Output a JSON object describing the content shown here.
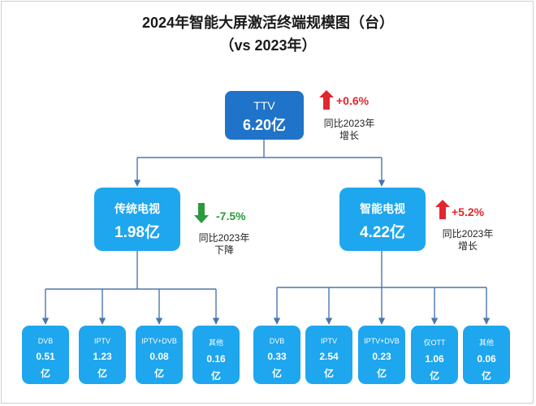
{
  "title": "2024年智能大屏激活终端规模图（台）",
  "subtitle": "（vs 2023年）",
  "root": {
    "label": "TTV",
    "value": "6.20亿",
    "change": "+0.6%",
    "note_line1": "同比2023年",
    "note_line2": "增长"
  },
  "traditional": {
    "label": "传统电视",
    "value": "1.98亿",
    "change": "-7.5%",
    "note_line1": "同比2023年",
    "note_line2": "下降"
  },
  "smart": {
    "label": "智能电视",
    "value": "4.22亿",
    "change": "+5.2%",
    "note_line1": "同比2023年",
    "note_line2": "增长"
  },
  "unit": "亿",
  "traditional_children": [
    {
      "label": "DVB",
      "value": "0.51"
    },
    {
      "label": "IPTV",
      "value": "1.23"
    },
    {
      "label": "IPTV+DVB",
      "value": "0.08"
    },
    {
      "label": "其他",
      "value": "0.16"
    }
  ],
  "smart_children": [
    {
      "label": "DVB",
      "value": "0.33"
    },
    {
      "label": "IPTV",
      "value": "2.54"
    },
    {
      "label": "IPTV+DVB",
      "value": "0.23"
    },
    {
      "label": "仅OTT",
      "value": "1.06"
    },
    {
      "label": "其他",
      "value": "0.06"
    }
  ],
  "colors": {
    "root": "#1f73c8",
    "node": "#1ea6ee",
    "line": "#4a76b0",
    "up": "#e0282d",
    "down": "#2a9a3a"
  }
}
